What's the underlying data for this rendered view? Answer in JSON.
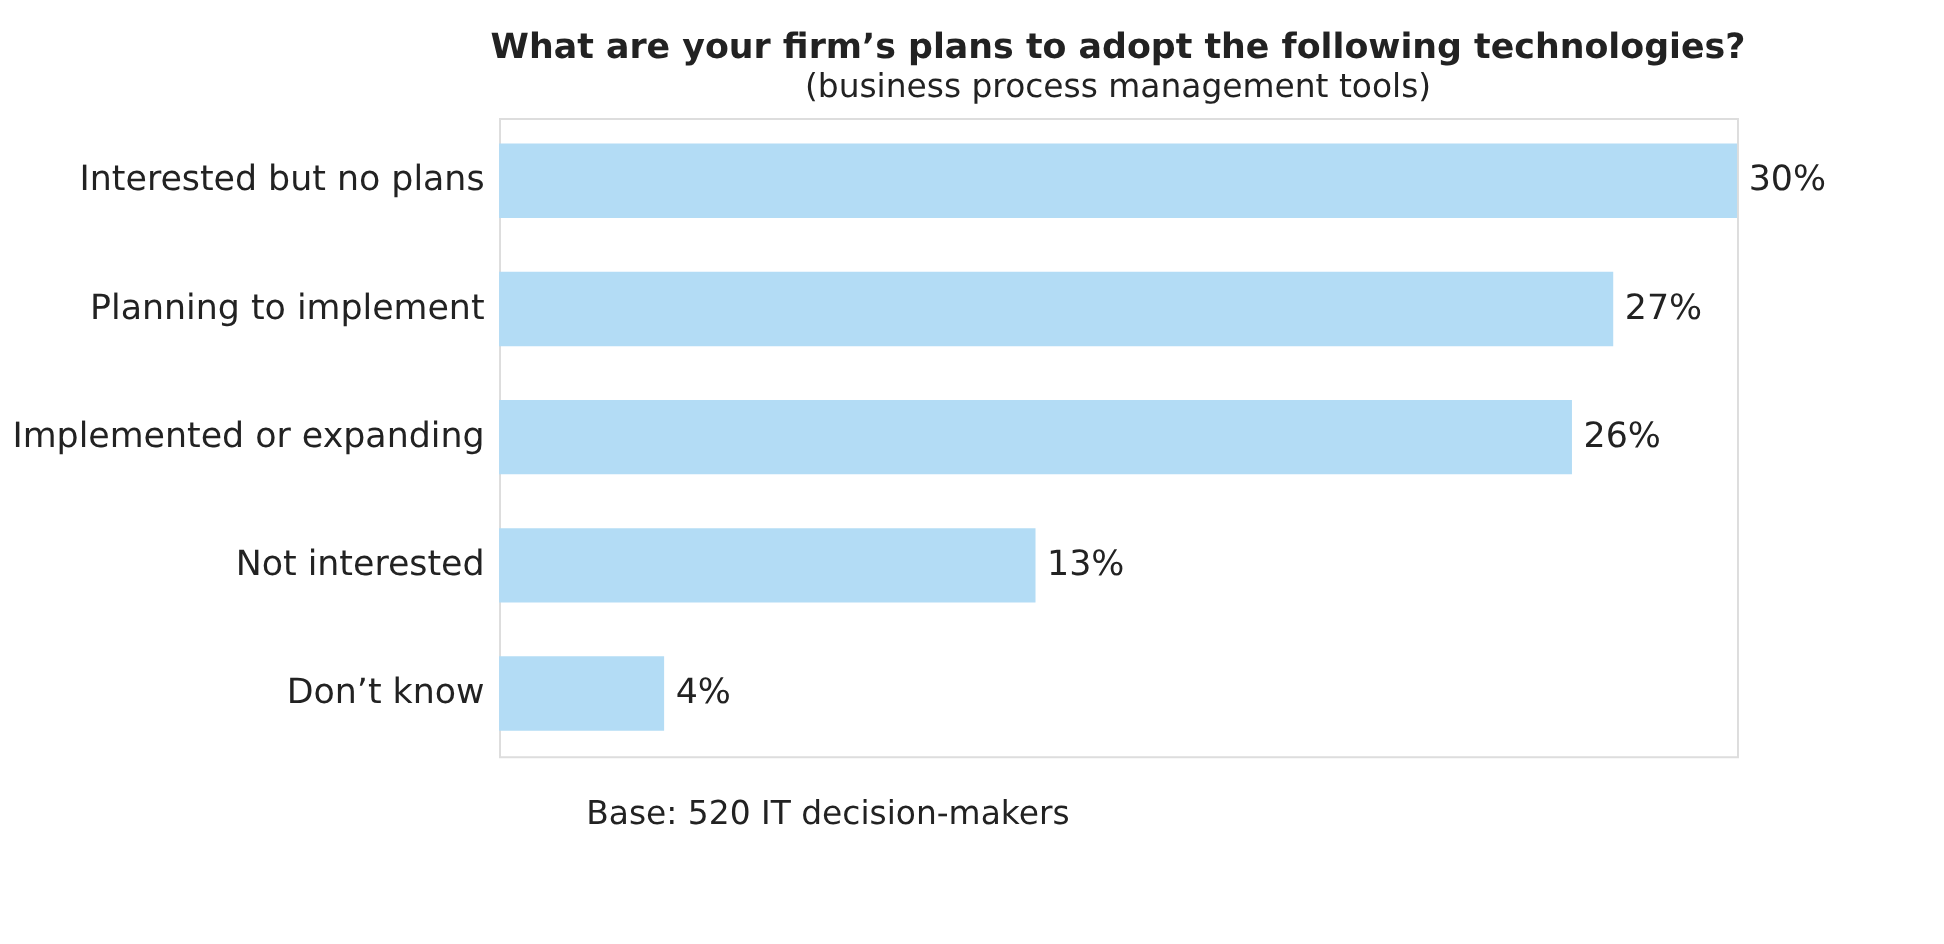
{
  "chart_data": {
    "type": "bar",
    "orientation": "horizontal",
    "relative": false,
    "title": "What are your firm’s plans to adopt the following technologies?",
    "subtitle": "(business process management tools)",
    "categories": [
      "Interested but no plans",
      "Planning to implement",
      "Implemented or expanding",
      "Not interested",
      "Don’t know"
    ],
    "values": [
      30,
      27,
      26,
      13,
      4
    ],
    "value_labels": [
      "30%",
      "27%",
      "26%",
      "13%",
      "4%"
    ],
    "color": "#b3dcf5",
    "annotations": [
      "Base: 520 IT decision-makers"
    ]
  }
}
